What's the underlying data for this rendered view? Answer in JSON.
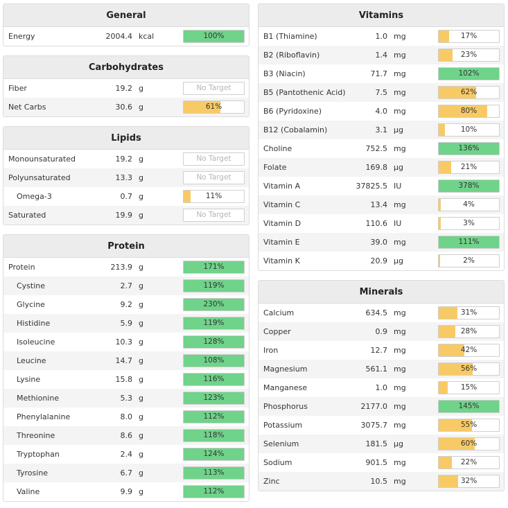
{
  "panels": {
    "general": {
      "title": "General",
      "rows": [
        {
          "name": "Energy",
          "amount": "2004.4",
          "unit": "kcal",
          "pct": "100%",
          "value": 100,
          "status": "green"
        }
      ]
    },
    "carbs": {
      "title": "Carbohydrates",
      "rows": [
        {
          "name": "Fiber",
          "amount": "19.2",
          "unit": "g",
          "pct": "No Target",
          "value": 0,
          "status": "none"
        },
        {
          "name": "Net Carbs",
          "amount": "30.6",
          "unit": "g",
          "pct": "61%",
          "value": 61,
          "status": "yellow"
        }
      ]
    },
    "lipids": {
      "title": "Lipids",
      "rows": [
        {
          "name": "Monounsaturated",
          "amount": "19.2",
          "unit": "g",
          "pct": "No Target",
          "value": 0,
          "status": "none"
        },
        {
          "name": "Polyunsaturated",
          "amount": "13.3",
          "unit": "g",
          "pct": "No Target",
          "value": 0,
          "status": "none"
        },
        {
          "name": "Omega-3",
          "amount": "0.7",
          "unit": "g",
          "pct": "11%",
          "value": 11,
          "status": "yellow",
          "indent": true
        },
        {
          "name": "Saturated",
          "amount": "19.9",
          "unit": "g",
          "pct": "No Target",
          "value": 0,
          "status": "none"
        }
      ]
    },
    "protein": {
      "title": "Protein",
      "rows": [
        {
          "name": "Protein",
          "amount": "213.9",
          "unit": "g",
          "pct": "171%",
          "value": 171,
          "status": "green"
        },
        {
          "name": "Cystine",
          "amount": "2.7",
          "unit": "g",
          "pct": "119%",
          "value": 119,
          "status": "green",
          "indent": true
        },
        {
          "name": "Glycine",
          "amount": "9.2",
          "unit": "g",
          "pct": "230%",
          "value": 230,
          "status": "green",
          "indent": true
        },
        {
          "name": "Histidine",
          "amount": "5.9",
          "unit": "g",
          "pct": "119%",
          "value": 119,
          "status": "green",
          "indent": true
        },
        {
          "name": "Isoleucine",
          "amount": "10.3",
          "unit": "g",
          "pct": "128%",
          "value": 128,
          "status": "green",
          "indent": true
        },
        {
          "name": "Leucine",
          "amount": "14.7",
          "unit": "g",
          "pct": "108%",
          "value": 108,
          "status": "green",
          "indent": true
        },
        {
          "name": "Lysine",
          "amount": "15.8",
          "unit": "g",
          "pct": "116%",
          "value": 116,
          "status": "green",
          "indent": true
        },
        {
          "name": "Methionine",
          "amount": "5.3",
          "unit": "g",
          "pct": "123%",
          "value": 123,
          "status": "green",
          "indent": true
        },
        {
          "name": "Phenylalanine",
          "amount": "8.0",
          "unit": "g",
          "pct": "112%",
          "value": 112,
          "status": "green",
          "indent": true
        },
        {
          "name": "Threonine",
          "amount": "8.6",
          "unit": "g",
          "pct": "118%",
          "value": 118,
          "status": "green",
          "indent": true
        },
        {
          "name": "Tryptophan",
          "amount": "2.4",
          "unit": "g",
          "pct": "124%",
          "value": 124,
          "status": "green",
          "indent": true
        },
        {
          "name": "Tyrosine",
          "amount": "6.7",
          "unit": "g",
          "pct": "113%",
          "value": 113,
          "status": "green",
          "indent": true
        },
        {
          "name": "Valine",
          "amount": "9.9",
          "unit": "g",
          "pct": "112%",
          "value": 112,
          "status": "green",
          "indent": true
        }
      ]
    },
    "vitamins": {
      "title": "Vitamins",
      "rows": [
        {
          "name": "B1 (Thiamine)",
          "amount": "1.0",
          "unit": "mg",
          "pct": "17%",
          "value": 17,
          "status": "yellow"
        },
        {
          "name": "B2 (Riboflavin)",
          "amount": "1.4",
          "unit": "mg",
          "pct": "23%",
          "value": 23,
          "status": "yellow"
        },
        {
          "name": "B3 (Niacin)",
          "amount": "71.7",
          "unit": "mg",
          "pct": "102%",
          "value": 102,
          "status": "green"
        },
        {
          "name": "B5 (Pantothenic Acid)",
          "amount": "7.5",
          "unit": "mg",
          "pct": "62%",
          "value": 62,
          "status": "yellow"
        },
        {
          "name": "B6 (Pyridoxine)",
          "amount": "4.0",
          "unit": "mg",
          "pct": "80%",
          "value": 80,
          "status": "yellow"
        },
        {
          "name": "B12 (Cobalamin)",
          "amount": "3.1",
          "unit": "µg",
          "pct": "10%",
          "value": 10,
          "status": "yellow"
        },
        {
          "name": "Choline",
          "amount": "752.5",
          "unit": "mg",
          "pct": "136%",
          "value": 136,
          "status": "green"
        },
        {
          "name": "Folate",
          "amount": "169.8",
          "unit": "µg",
          "pct": "21%",
          "value": 21,
          "status": "yellow"
        },
        {
          "name": "Vitamin A",
          "amount": "37825.5",
          "unit": "IU",
          "pct": "378%",
          "value": 378,
          "status": "green"
        },
        {
          "name": "Vitamin C",
          "amount": "13.4",
          "unit": "mg",
          "pct": "4%",
          "value": 4,
          "status": "yellow"
        },
        {
          "name": "Vitamin D",
          "amount": "110.6",
          "unit": "IU",
          "pct": "3%",
          "value": 3,
          "status": "yellow"
        },
        {
          "name": "Vitamin E",
          "amount": "39.0",
          "unit": "mg",
          "pct": "111%",
          "value": 111,
          "status": "green"
        },
        {
          "name": "Vitamin K",
          "amount": "20.9",
          "unit": "µg",
          "pct": "2%",
          "value": 2,
          "status": "yellow"
        }
      ]
    },
    "minerals": {
      "title": "Minerals",
      "rows": [
        {
          "name": "Calcium",
          "amount": "634.5",
          "unit": "mg",
          "pct": "31%",
          "value": 31,
          "status": "yellow"
        },
        {
          "name": "Copper",
          "amount": "0.9",
          "unit": "mg",
          "pct": "28%",
          "value": 28,
          "status": "yellow"
        },
        {
          "name": "Iron",
          "amount": "12.7",
          "unit": "mg",
          "pct": "42%",
          "value": 42,
          "status": "yellow"
        },
        {
          "name": "Magnesium",
          "amount": "561.1",
          "unit": "mg",
          "pct": "56%",
          "value": 56,
          "status": "yellow"
        },
        {
          "name": "Manganese",
          "amount": "1.0",
          "unit": "mg",
          "pct": "15%",
          "value": 15,
          "status": "yellow"
        },
        {
          "name": "Phosphorus",
          "amount": "2177.0",
          "unit": "mg",
          "pct": "145%",
          "value": 145,
          "status": "green"
        },
        {
          "name": "Potassium",
          "amount": "3075.7",
          "unit": "mg",
          "pct": "55%",
          "value": 55,
          "status": "yellow"
        },
        {
          "name": "Selenium",
          "amount": "181.5",
          "unit": "µg",
          "pct": "60%",
          "value": 60,
          "status": "yellow"
        },
        {
          "name": "Sodium",
          "amount": "901.5",
          "unit": "mg",
          "pct": "22%",
          "value": 22,
          "status": "yellow"
        },
        {
          "name": "Zinc",
          "amount": "10.5",
          "unit": "mg",
          "pct": "32%",
          "value": 32,
          "status": "yellow"
        }
      ]
    }
  }
}
